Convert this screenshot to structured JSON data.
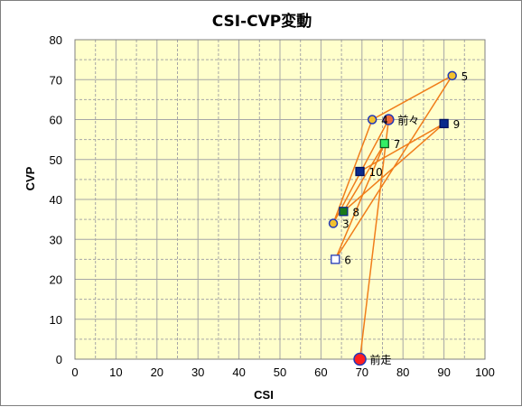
{
  "chart_data": {
    "type": "scatter",
    "title": "CSI-CVP変動",
    "xlabel": "CSI",
    "ylabel": "CVP",
    "xlim": [
      0,
      100
    ],
    "ylim": [
      0,
      80
    ],
    "xticks": [
      "0",
      "10",
      "20",
      "30",
      "40",
      "50",
      "60",
      "70",
      "80",
      "90",
      "100"
    ],
    "yticks": [
      "0",
      "10",
      "20",
      "30",
      "40",
      "50",
      "60",
      "70",
      "80"
    ],
    "grid": true,
    "colors": {
      "plot_bg": "#ffffcc",
      "grid": "#a6a6a6",
      "line": "#f07d1a",
      "circle_fill": "#f2c12e",
      "circle_edge": "#2038b8",
      "navy_square": "#0a2a8c",
      "green_square": "#33ee66",
      "dark_green_square": "#1a7a1a",
      "red_circle": "#ff2020",
      "orange_red_circle": "#f06a3a"
    },
    "points": [
      {
        "label": "前走",
        "x": 69.5,
        "y": 0,
        "marker": "red-circle"
      },
      {
        "label": "前々",
        "x": 76.5,
        "y": 60,
        "marker": "orange-red-circle"
      },
      {
        "label": "3",
        "x": 63,
        "y": 34,
        "marker": "yellow-circle"
      },
      {
        "label": "4",
        "x": 72.5,
        "y": 60,
        "marker": "yellow-circle"
      },
      {
        "label": "5",
        "x": 92,
        "y": 71,
        "marker": "yellow-circle"
      },
      {
        "label": "6",
        "x": 63.5,
        "y": 25,
        "marker": "hollow-square"
      },
      {
        "label": "7",
        "x": 75.5,
        "y": 54,
        "marker": "green-square"
      },
      {
        "label": "8",
        "x": 65.5,
        "y": 37,
        "marker": "dark-green-square"
      },
      {
        "label": "9",
        "x": 90,
        "y": 59,
        "marker": "navy-square"
      },
      {
        "label": "10",
        "x": 69.5,
        "y": 47,
        "marker": "navy-square"
      }
    ]
  }
}
